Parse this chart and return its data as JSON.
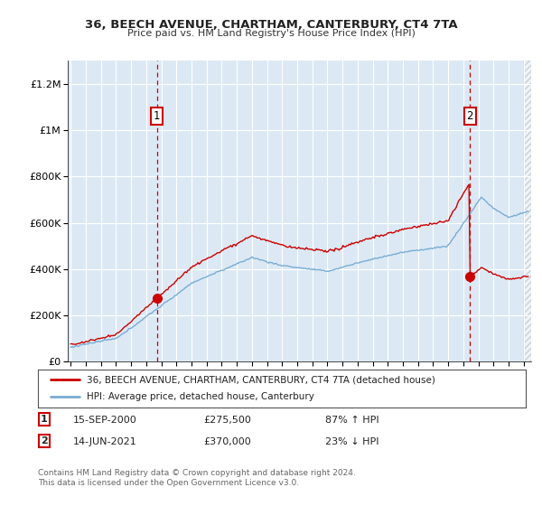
{
  "title": "36, BEECH AVENUE, CHARTHAM, CANTERBURY, CT4 7TA",
  "subtitle": "Price paid vs. HM Land Registry's House Price Index (HPI)",
  "legend_label_red": "36, BEECH AVENUE, CHARTHAM, CANTERBURY, CT4 7TA (detached house)",
  "legend_label_blue": "HPI: Average price, detached house, Canterbury",
  "annotation1_date": "15-SEP-2000",
  "annotation1_price": "£275,500",
  "annotation1_hpi": "87% ↑ HPI",
  "annotation2_date": "14-JUN-2021",
  "annotation2_price": "£370,000",
  "annotation2_hpi": "23% ↓ HPI",
  "footnote": "Contains HM Land Registry data © Crown copyright and database right 2024.\nThis data is licensed under the Open Government Licence v3.0.",
  "ylim": [
    0,
    1300000
  ],
  "yticks": [
    0,
    200000,
    400000,
    600000,
    800000,
    1000000,
    1200000
  ],
  "ytick_labels": [
    "£0",
    "£200K",
    "£400K",
    "£600K",
    "£800K",
    "£1M",
    "£1.2M"
  ],
  "background_color": "#ffffff",
  "plot_bg_color": "#dce9f5",
  "grid_color": "#ffffff",
  "red_color": "#cc0000",
  "blue_color": "#7aadd4",
  "sale1_x": 2000.71,
  "sale1_y": 275500,
  "sale2_x": 2021.45,
  "sale2_y": 370000,
  "xmin": 1994.8,
  "xmax": 2025.5
}
